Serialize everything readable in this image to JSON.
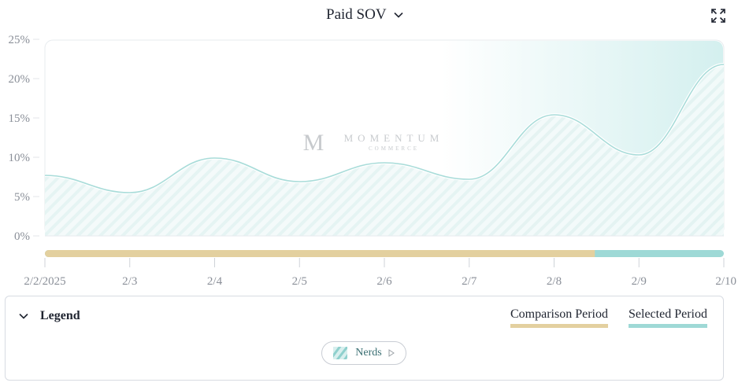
{
  "header": {
    "title": "Paid SOV",
    "expand_icon": "expand-icon",
    "dropdown_icon": "chevron-down-icon"
  },
  "watermark": {
    "brand": "MOMENTUM",
    "sub": "COMMERCE",
    "logo_letter": "M"
  },
  "chart_data": {
    "type": "area",
    "title": "Paid SOV",
    "xlabel": "",
    "ylabel": "",
    "categories": [
      "2/2/2025",
      "2/3",
      "2/4",
      "2/5",
      "2/6",
      "2/7",
      "2/8",
      "2/9",
      "2/10"
    ],
    "ylim": [
      0,
      25
    ],
    "yticks": [
      "25%",
      "20%",
      "15%",
      "10%",
      "5%",
      "0%"
    ],
    "ytick_values": [
      25,
      20,
      15,
      10,
      5,
      0
    ],
    "grid": false,
    "series": [
      {
        "name": "Nerds",
        "values": [
          7.7,
          5.5,
          9.9,
          6.9,
          9.3,
          7.2,
          15.4,
          10.3,
          21.8
        ],
        "color": "#a8dcd9"
      }
    ],
    "periods": [
      {
        "name": "Comparison Period",
        "from": "2/2/2025",
        "to_fraction_of_range": 0.81,
        "color": "#e3d09f"
      },
      {
        "name": "Selected Period",
        "from_fraction_of_range": 0.81,
        "to": "2/10",
        "color": "#9ed9d6"
      }
    ]
  },
  "legend": {
    "title": "Legend",
    "toggle_icon": "chevron-down-icon",
    "comparison_label": "Comparison Period",
    "selected_label": "Selected Period",
    "chip": {
      "label": "Nerds",
      "icon": "play-icon",
      "swatch": "hatched-teal"
    }
  }
}
